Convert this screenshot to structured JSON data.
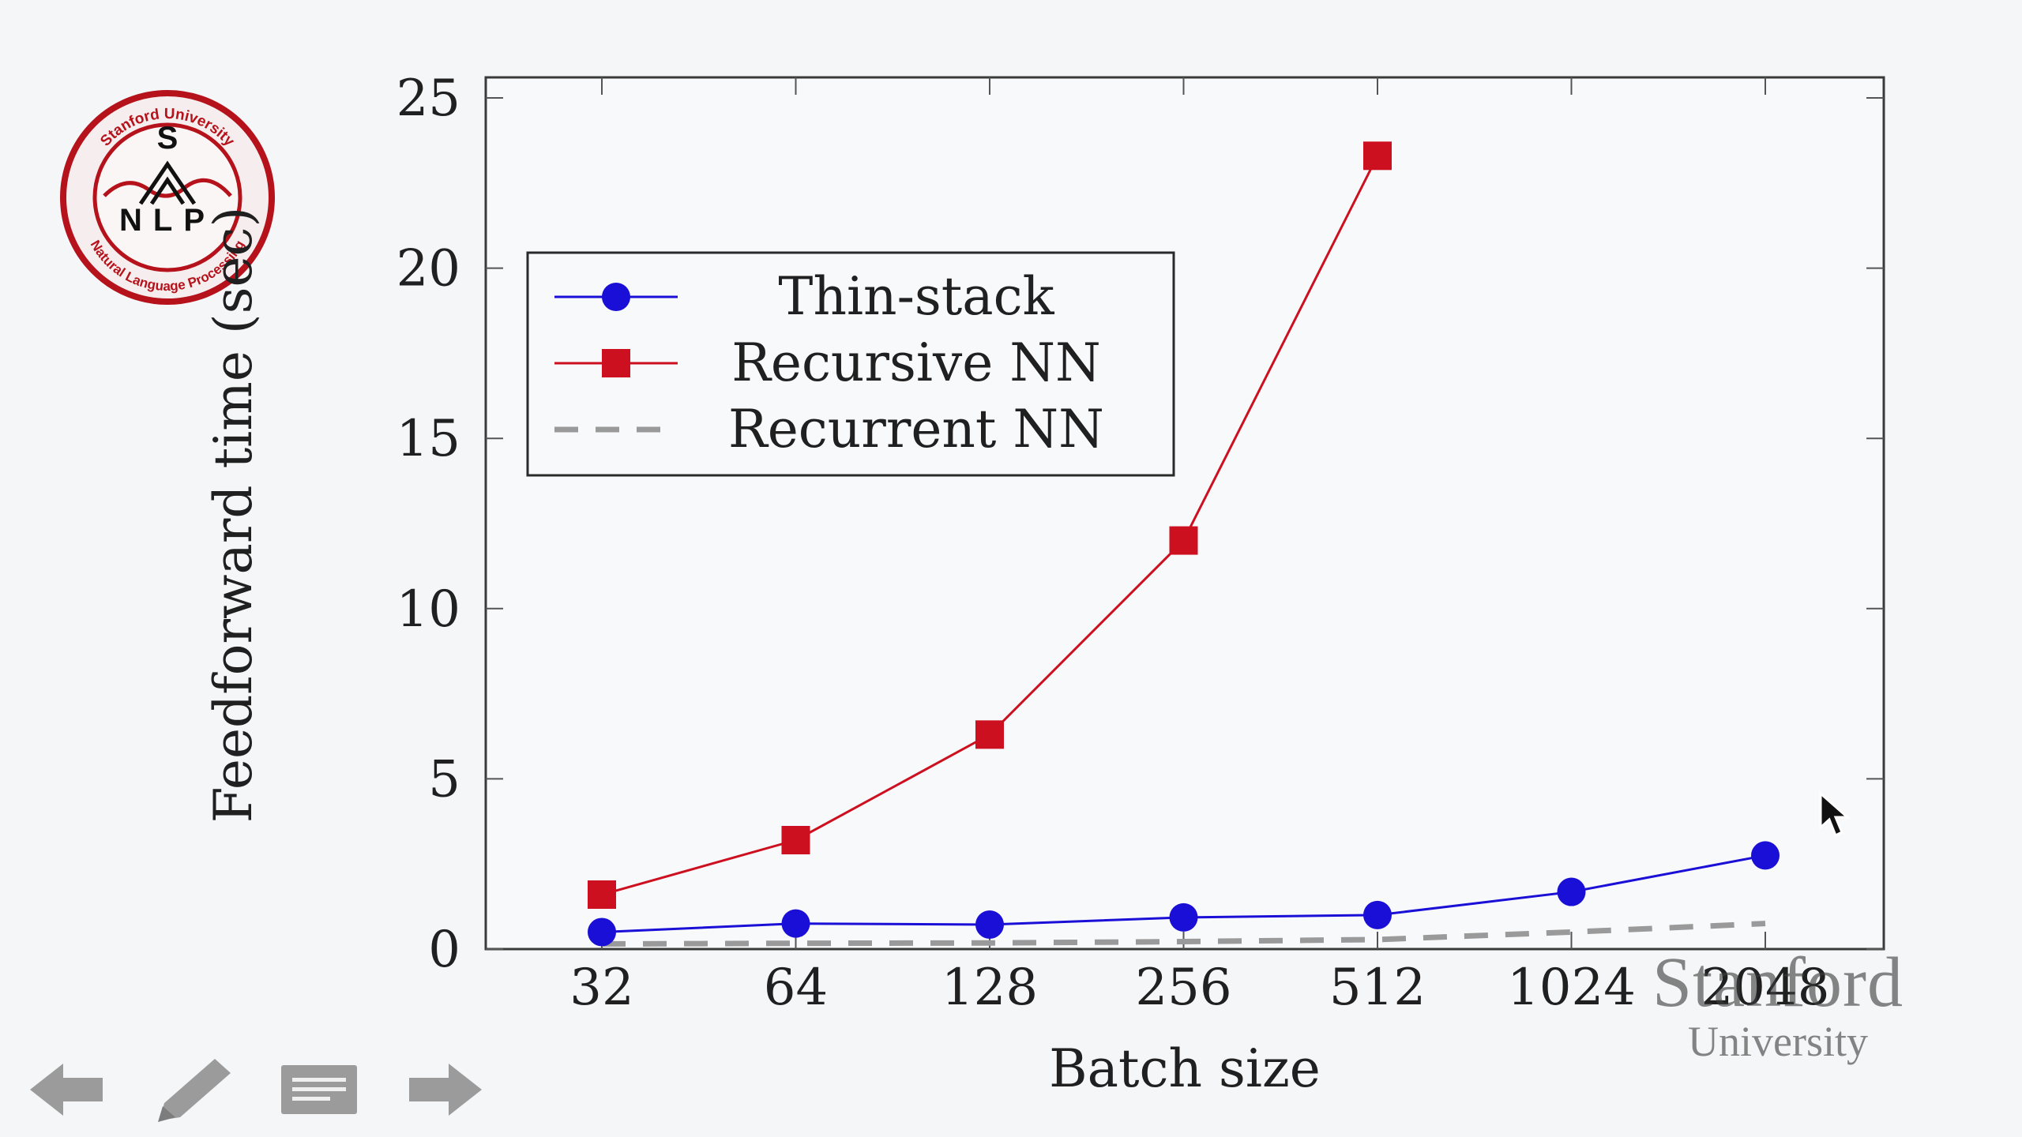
{
  "chart_data": {
    "type": "line",
    "xlabel": "Batch size",
    "ylabel": "Feedforward time (sec)",
    "categories": [
      "32",
      "64",
      "128",
      "256",
      "512",
      "1024",
      "2048"
    ],
    "ylim": [
      0,
      25
    ],
    "yticks": [
      0,
      5,
      10,
      15,
      20,
      25
    ],
    "grid": false,
    "legend_position": "top-left",
    "series": [
      {
        "name": "Thin-stack",
        "marker": "circle",
        "style": "solid",
        "color": "#1a0fd6",
        "values": [
          0.5,
          0.75,
          0.72,
          0.93,
          1.0,
          1.68,
          2.75
        ]
      },
      {
        "name": "Recursive NN",
        "marker": "square",
        "style": "solid",
        "color": "#cc1020",
        "values": [
          1.6,
          3.2,
          6.3,
          12.0,
          23.3,
          null,
          null
        ]
      },
      {
        "name": "Recurrent NN",
        "marker": "none",
        "style": "dashed",
        "color": "#9a9a9a",
        "values": [
          0.15,
          0.17,
          0.18,
          0.22,
          0.28,
          0.5,
          0.75
        ]
      }
    ]
  },
  "logo": {
    "brand_color": "#b5121b",
    "ring_text_top": "Stanford University",
    "ring_text_bottom": "Natural Language Processing",
    "letters": "S N L P"
  },
  "watermark": {
    "title": "Stanford",
    "subtitle": "University"
  },
  "nav": [
    {
      "name": "previous-slide",
      "icon": "arrow-left-icon"
    },
    {
      "name": "pen",
      "icon": "pencil-icon"
    },
    {
      "name": "notes",
      "icon": "notes-icon"
    },
    {
      "name": "next-slide",
      "icon": "arrow-right-icon"
    }
  ]
}
